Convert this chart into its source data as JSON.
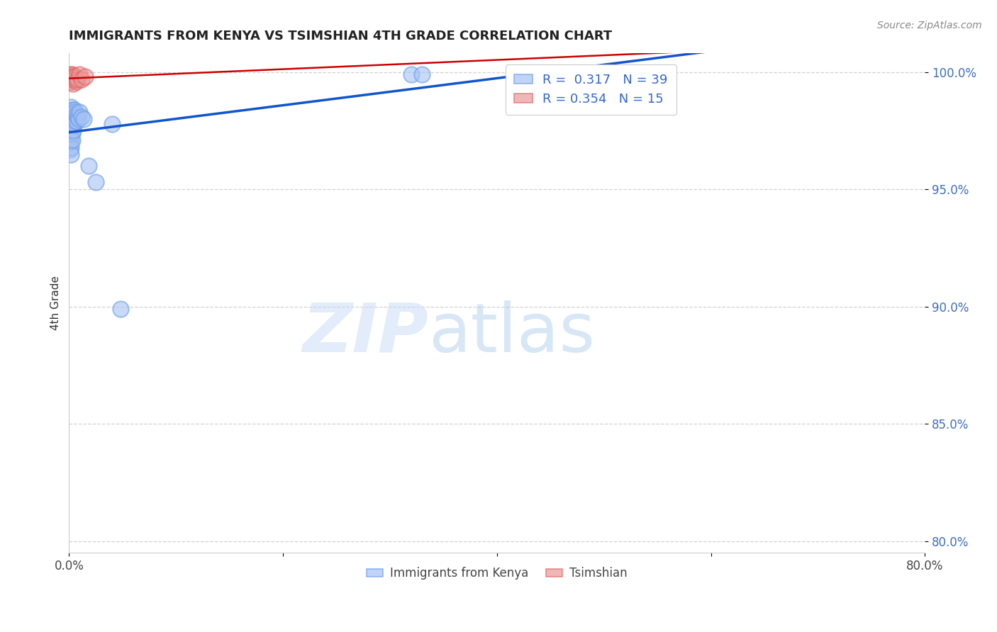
{
  "title": "IMMIGRANTS FROM KENYA VS TSIMSHIAN 4TH GRADE CORRELATION CHART",
  "source": "Source: ZipAtlas.com",
  "ylabel": "4th Grade",
  "xlim": [
    0.0,
    0.8
  ],
  "ylim": [
    0.795,
    1.008
  ],
  "xtick_vals": [
    0.0,
    0.2,
    0.4,
    0.6,
    0.8
  ],
  "xtick_labels": [
    "0.0%",
    "",
    "",
    "",
    "80.0%"
  ],
  "ytick_vals": [
    0.8,
    0.85,
    0.9,
    0.95,
    1.0
  ],
  "ytick_labels": [
    "80.0%",
    "85.0%",
    "90.0%",
    "95.0%",
    "100.0%"
  ],
  "kenya_color": "#a4c2f4",
  "kenya_edge_color": "#6d9eeb",
  "tsimshian_color": "#ea9999",
  "tsimshian_edge_color": "#e06666",
  "kenya_line_color": "#1155cc",
  "tsimshian_line_color": "#cc0000",
  "kenya_R": 0.317,
  "kenya_N": 39,
  "tsimshian_R": 0.354,
  "tsimshian_N": 15,
  "legend_bottom_labels": [
    "Immigrants from Kenya",
    "Tsimshian"
  ],
  "kenya_x": [
    0.001,
    0.001,
    0.001,
    0.001,
    0.001,
    0.001,
    0.002,
    0.002,
    0.002,
    0.002,
    0.002,
    0.002,
    0.002,
    0.003,
    0.003,
    0.003,
    0.003,
    0.003,
    0.004,
    0.004,
    0.004,
    0.005,
    0.005,
    0.005,
    0.006,
    0.006,
    0.007,
    0.007,
    0.008,
    0.009,
    0.01,
    0.012,
    0.014,
    0.018,
    0.025,
    0.04,
    0.048,
    0.32,
    0.33
  ],
  "kenya_y": [
    0.982,
    0.979,
    0.976,
    0.973,
    0.97,
    0.967,
    0.985,
    0.982,
    0.978,
    0.975,
    0.971,
    0.968,
    0.965,
    0.984,
    0.98,
    0.977,
    0.974,
    0.971,
    0.982,
    0.978,
    0.975,
    0.984,
    0.981,
    0.978,
    0.983,
    0.979,
    0.982,
    0.979,
    0.981,
    0.98,
    0.983,
    0.981,
    0.98,
    0.96,
    0.953,
    0.978,
    0.899,
    0.999,
    0.999
  ],
  "tsimshian_x": [
    0.001,
    0.001,
    0.002,
    0.002,
    0.003,
    0.003,
    0.004,
    0.004,
    0.005,
    0.006,
    0.007,
    0.008,
    0.01,
    0.012,
    0.015
  ],
  "tsimshian_y": [
    0.999,
    0.997,
    0.998,
    0.996,
    0.999,
    0.997,
    0.998,
    0.995,
    0.997,
    0.998,
    0.996,
    0.997,
    0.999,
    0.997,
    0.998
  ]
}
